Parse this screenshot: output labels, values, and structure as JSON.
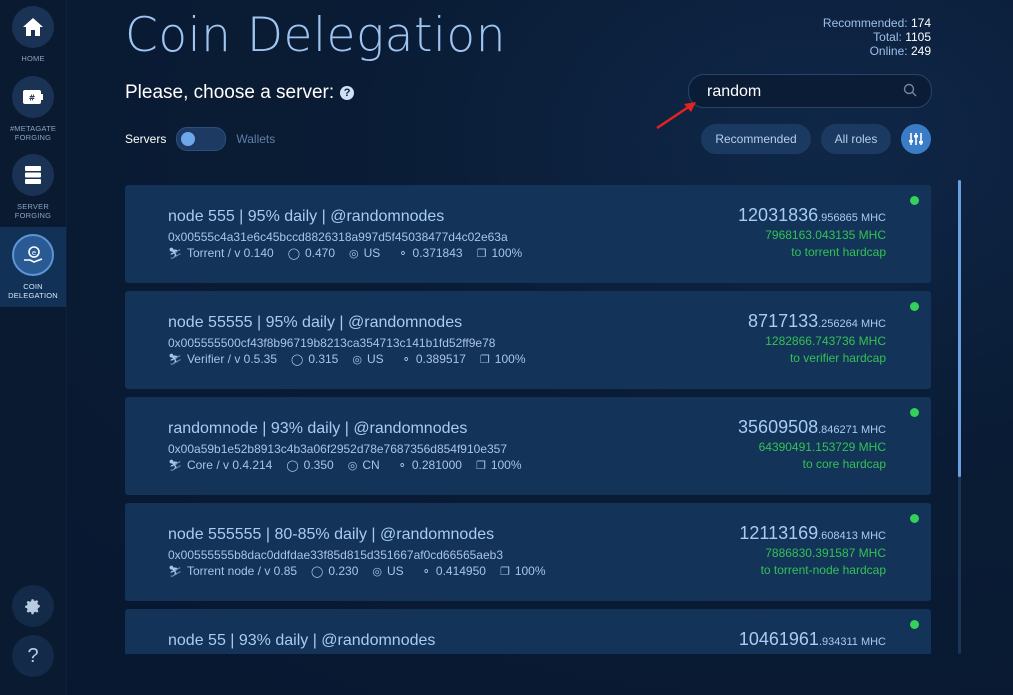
{
  "sidebar": {
    "items": [
      {
        "label_line1": "HOME",
        "label_line2": "",
        "icon": "home-icon"
      },
      {
        "label_line1": "#METAGATE",
        "label_line2": "FORGING",
        "icon": "hash-card-icon"
      },
      {
        "label_line1": "SERVER",
        "label_line2": "FORGING",
        "icon": "server-icon"
      },
      {
        "label_line1": "COIN",
        "label_line2": "DELEGATION",
        "icon": "coin-hand-icon"
      }
    ],
    "settings_icon": "gear-icon",
    "help_label": "?"
  },
  "header": {
    "title": "Coin Delegation",
    "subtitle": "Please, choose a server:",
    "help_icon": "?",
    "stats": {
      "recommended_label": "Recommended:",
      "recommended_value": "174",
      "total_label": "Total:",
      "total_value": "1105",
      "online_label": "Online:",
      "online_value": "249"
    }
  },
  "search": {
    "value": "random",
    "placeholder": ""
  },
  "toggle": {
    "left_label": "Servers",
    "right_label": "Wallets"
  },
  "filters": {
    "recommended": "Recommended",
    "all_roles": "All roles"
  },
  "colors": {
    "accent": "#3a7cc6",
    "online": "#33d05a",
    "green_text": "#33c255"
  },
  "servers": [
    {
      "name": "node 555 | 95% daily | @randomnodes",
      "address": "0x00555c4a31e6c45bccd8826318a997d5f45038477d4c02e63a",
      "type": "Torrent / v 0.140",
      "trust": "0.470",
      "country": "US",
      "ping": "0.371843",
      "uptime": "100%",
      "amount_int": "12031836",
      "amount_frac": ".956865 MHC",
      "hardcap_amount": "7968163.043135 MHC",
      "hardcap_label": "to torrent hardcap"
    },
    {
      "name": "node 55555 | 95% daily | @randomnodes",
      "address": "0x005555500cf43f8b96719b8213ca354713c141b1fd52ff9e78",
      "type": "Verifier / v 0.5.35",
      "trust": "0.315",
      "country": "US",
      "ping": "0.389517",
      "uptime": "100%",
      "amount_int": "8717133",
      "amount_frac": ".256264 MHC",
      "hardcap_amount": "1282866.743736 MHC",
      "hardcap_label": "to verifier hardcap"
    },
    {
      "name": "randomnode | 93% daily | @randomnodes",
      "address": "0x00a59b1e52b8913c4b3a06f2952d78e7687356d854f910e357",
      "type": "Core / v 0.4.214",
      "trust": "0.350",
      "country": "CN",
      "ping": "0.281000",
      "uptime": "100%",
      "amount_int": "35609508",
      "amount_frac": ".846271 MHC",
      "hardcap_amount": "64390491.153729 MHC",
      "hardcap_label": "to core hardcap"
    },
    {
      "name": "node 555555 | 80-85% daily | @randomnodes",
      "address": "0x00555555b8dac0ddfdae33f85d815d351667af0cd66565aeb3",
      "type": "Torrent node / v 0.85",
      "trust": "0.230",
      "country": "US",
      "ping": "0.414950",
      "uptime": "100%",
      "amount_int": "12113169",
      "amount_frac": ".608413 MHC",
      "hardcap_amount": "7886830.391587 MHC",
      "hardcap_label": "to torrent-node hardcap"
    },
    {
      "name": "node 55 | 93% daily | @randomnodes",
      "address": "",
      "type": "",
      "trust": "",
      "country": "",
      "ping": "",
      "uptime": "",
      "amount_int": "10461961",
      "amount_frac": ".934311 MHC",
      "hardcap_amount": "",
      "hardcap_label": ""
    }
  ]
}
